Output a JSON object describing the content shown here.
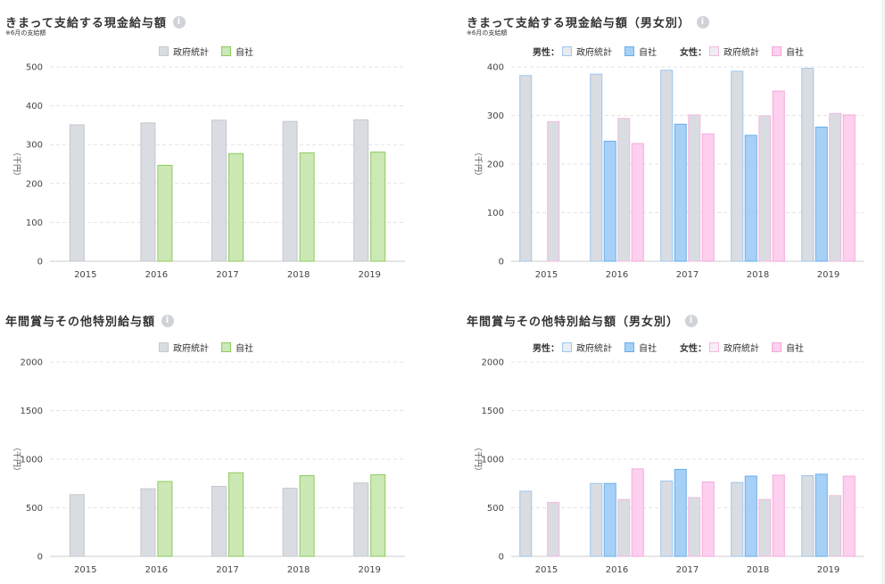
{
  "colors": {
    "gov_fill": "#d9dde2",
    "gov_stroke": "#c4c9cf",
    "own_fill": "#cce8b5",
    "own_stroke": "#8ccc5d",
    "male_own_fill": "#a7d0f7",
    "male_own_stroke": "#6aaee8",
    "female_own_fill": "#fdd0ef",
    "female_own_stroke": "#f5a9dc",
    "male_gov_stroke": "#9ec6ee",
    "female_gov_stroke": "#f5b9e0",
    "grid": "#e3e3e3",
    "axis": "#cccccc"
  },
  "panels": [
    {
      "title": "きまって支給する現金給与額",
      "note": "※6月の支給額",
      "legend": [
        {
          "label": "政府統計",
          "swatch": "gov"
        },
        {
          "label": "自社",
          "swatch": "own"
        }
      ],
      "ylabel": "（千円）"
    },
    {
      "title": "きまって支給する現金給与額（男女別）",
      "note": "※6月の支給額",
      "legend_groups": [
        {
          "prefix": "男性：",
          "items": [
            {
              "label": "政府統計",
              "swatch": "gov_m"
            },
            {
              "label": "自社",
              "swatch": "male_own"
            }
          ]
        },
        {
          "prefix": "女性：",
          "items": [
            {
              "label": "政府統計",
              "swatch": "gov_f"
            },
            {
              "label": "自社",
              "swatch": "female_own"
            }
          ]
        }
      ],
      "ylabel": "（千円）"
    },
    {
      "title": "年間賞与その他特別給与額",
      "note": "",
      "legend": [
        {
          "label": "政府統計",
          "swatch": "gov"
        },
        {
          "label": "自社",
          "swatch": "own"
        }
      ],
      "ylabel": "（千円）"
    },
    {
      "title": "年間賞与その他特別給与額（男女別）",
      "note": "",
      "legend_groups": [
        {
          "prefix": "男性：",
          "items": [
            {
              "label": "政府統計",
              "swatch": "gov_m2"
            },
            {
              "label": "自社",
              "swatch": "male_own"
            }
          ]
        },
        {
          "prefix": "女性：",
          "items": [
            {
              "label": "政府統計",
              "swatch": "gov_f2"
            },
            {
              "label": "自社",
              "swatch": "female_own"
            }
          ]
        }
      ],
      "ylabel": "（千円）"
    }
  ],
  "chart_data": [
    {
      "type": "bar",
      "title": "きまって支給する現金給与額",
      "categories": [
        "2015",
        "2016",
        "2017",
        "2018",
        "2019"
      ],
      "ylim": [
        0,
        500
      ],
      "yticks": [
        0,
        100,
        200,
        300,
        400,
        500
      ],
      "ylabel": "（千円）",
      "grid": true,
      "series": [
        {
          "name": "政府統計",
          "style": "gov",
          "values": [
            352,
            357,
            364,
            361,
            365
          ]
        },
        {
          "name": "自社",
          "style": "own",
          "values": [
            null,
            248,
            278,
            280,
            282
          ]
        }
      ]
    },
    {
      "type": "bar",
      "title": "きまって支給する現金給与額（男女別）",
      "categories": [
        "2015",
        "2016",
        "2017",
        "2018",
        "2019"
      ],
      "ylim": [
        0,
        400
      ],
      "yticks": [
        0,
        100,
        200,
        300,
        400
      ],
      "ylabel": "（千円）",
      "grid": true,
      "series": [
        {
          "name": "男性：政府統計",
          "style": "gov_m",
          "values": [
            383,
            386,
            394,
            392,
            398
          ]
        },
        {
          "name": "男性：自社",
          "style": "male_own",
          "values": [
            null,
            248,
            283,
            260,
            277
          ]
        },
        {
          "name": "女性：政府統計",
          "style": "gov_f",
          "values": [
            288,
            295,
            302,
            300,
            305
          ]
        },
        {
          "name": "女性：自社",
          "style": "female_own",
          "values": [
            null,
            243,
            263,
            351,
            302
          ]
        }
      ]
    },
    {
      "type": "bar",
      "title": "年間賞与その他特別給与額",
      "categories": [
        "2015",
        "2016",
        "2017",
        "2018",
        "2019"
      ],
      "ylim": [
        0,
        2000
      ],
      "yticks": [
        0,
        500,
        1000,
        1500,
        2000
      ],
      "ylabel": "（千円）",
      "grid": true,
      "series": [
        {
          "name": "政府統計",
          "style": "gov",
          "values": [
            640,
            700,
            725,
            705,
            760
          ]
        },
        {
          "name": "自社",
          "style": "own",
          "values": [
            null,
            775,
            865,
            835,
            845
          ]
        }
      ]
    },
    {
      "type": "bar",
      "title": "年間賞与その他特別給与額（男女別）",
      "categories": [
        "2015",
        "2016",
        "2017",
        "2018",
        "2019"
      ],
      "ylim": [
        0,
        2000
      ],
      "yticks": [
        0,
        500,
        1000,
        1500,
        2000
      ],
      "ylabel": "（千円）",
      "grid": true,
      "series": [
        {
          "name": "男性：政府統計",
          "style": "gov_m",
          "values": [
            675,
            755,
            780,
            765,
            835
          ]
        },
        {
          "name": "男性：自社",
          "style": "male_own",
          "values": [
            null,
            755,
            900,
            830,
            850
          ]
        },
        {
          "name": "女性：政府統計",
          "style": "gov_f",
          "values": [
            560,
            590,
            610,
            590,
            630
          ]
        },
        {
          "name": "女性：自社",
          "style": "female_own",
          "values": [
            null,
            905,
            770,
            840,
            830
          ]
        }
      ]
    }
  ]
}
